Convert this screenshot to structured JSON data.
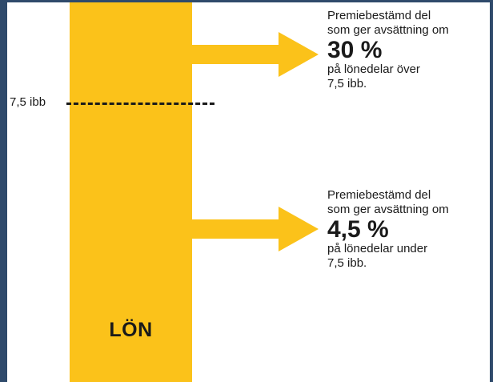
{
  "colors": {
    "bar": "#fbc21a",
    "text": "#1a1a1a",
    "frame": "#2f4a6b"
  },
  "salary": {
    "label": "LÖN"
  },
  "threshold": {
    "label": "7,5 ibb"
  },
  "upper": {
    "line1": "Premiebestämd del",
    "line2": "som ger avsättning om",
    "rate": "30 %",
    "line3": "på lönedelar över",
    "line4": "7,5 ibb."
  },
  "lower": {
    "line1": "Premiebestämd del",
    "line2": "som ger avsättning om",
    "rate": "4,5 %",
    "line3": "på lönedelar under",
    "line4": "7,5 ibb."
  },
  "icons": {
    "upper_arrow": "arrow-right-icon",
    "lower_arrow": "arrow-right-icon"
  }
}
